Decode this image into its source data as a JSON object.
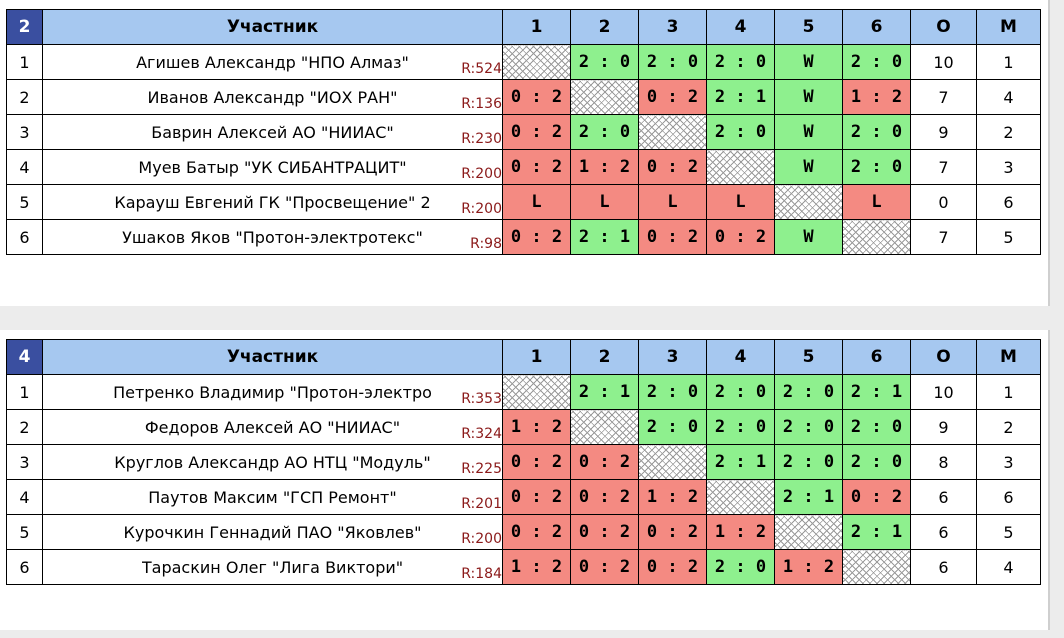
{
  "groups": [
    {
      "group_number": "2",
      "participant_header": "Участник",
      "round_headers": [
        "1",
        "2",
        "3",
        "4",
        "5",
        "6"
      ],
      "points_header": "О",
      "place_header": "М",
      "rows": [
        {
          "num": "1",
          "name": "Агишев Александр \"НПО Алмаз\"",
          "rating": "R:524",
          "cells": [
            "",
            "2 : 0",
            "2 : 0",
            "2 : 0",
            "W",
            "2 : 0"
          ],
          "points": "10",
          "place": "1"
        },
        {
          "num": "2",
          "name": "Иванов Александр \"ИОХ РАН\"",
          "rating": "R:136",
          "cells": [
            "0 : 2",
            "",
            "0 : 2",
            "2 : 1",
            "W",
            "1 : 2"
          ],
          "points": "7",
          "place": "4"
        },
        {
          "num": "3",
          "name": "Баврин Алексей АО \"НИИАС\"",
          "rating": "R:230",
          "cells": [
            "0 : 2",
            "2 : 0",
            "",
            "2 : 0",
            "W",
            "2 : 0"
          ],
          "points": "9",
          "place": "2"
        },
        {
          "num": "4",
          "name": "Муев Батыр \"УК СИБАНТРАЦИТ\"",
          "rating": "R:200",
          "cells": [
            "0 : 2",
            "1 : 2",
            "0 : 2",
            "",
            "W",
            "2 : 0"
          ],
          "points": "7",
          "place": "3"
        },
        {
          "num": "5",
          "name": "Карауш Евгений ГК \"Просвещение\" 2",
          "rating": "R:200",
          "cells": [
            "L",
            "L",
            "L",
            "L",
            "",
            "L"
          ],
          "points": "0",
          "place": "6"
        },
        {
          "num": "6",
          "name": "Ушаков Яков \"Протон-электротекс\"",
          "rating": "R:98",
          "cells": [
            "0 : 2",
            "2 : 1",
            "0 : 2",
            "0 : 2",
            "W",
            ""
          ],
          "points": "7",
          "place": "5"
        }
      ]
    },
    {
      "group_number": "4",
      "participant_header": "Участник",
      "round_headers": [
        "1",
        "2",
        "3",
        "4",
        "5",
        "6"
      ],
      "points_header": "О",
      "place_header": "М",
      "rows": [
        {
          "num": "1",
          "name": "Петренко Владимир \"Протон-электро",
          "rating": "R:353",
          "cells": [
            "",
            "2 : 1",
            "2 : 0",
            "2 : 0",
            "2 : 0",
            "2 : 1"
          ],
          "points": "10",
          "place": "1"
        },
        {
          "num": "2",
          "name": "Федоров Алексей АО \"НИИАС\"",
          "rating": "R:324",
          "cells": [
            "1 : 2",
            "",
            "2 : 0",
            "2 : 0",
            "2 : 0",
            "2 : 0"
          ],
          "points": "9",
          "place": "2"
        },
        {
          "num": "3",
          "name": "Круглов Александр АО НТЦ \"Модуль\"",
          "rating": "R:225",
          "cells": [
            "0 : 2",
            "0 : 2",
            "",
            "2 : 1",
            "2 : 0",
            "2 : 0"
          ],
          "points": "8",
          "place": "3"
        },
        {
          "num": "4",
          "name": "Паутов Максим \"ГСП Ремонт\"",
          "rating": "R:201",
          "cells": [
            "0 : 2",
            "0 : 2",
            "1 : 2",
            "",
            "2 : 1",
            "0 : 2"
          ],
          "points": "6",
          "place": "6"
        },
        {
          "num": "5",
          "name": "Курочкин Геннадий ПАО \"Яковлев\"",
          "rating": "R:200",
          "cells": [
            "0 : 2",
            "0 : 2",
            "0 : 2",
            "1 : 2",
            "",
            "2 : 1"
          ],
          "points": "6",
          "place": "5"
        },
        {
          "num": "6",
          "name": "Тараскин Олег \"Лига Виктори\"",
          "rating": "R:184",
          "cells": [
            "1 : 2",
            "0 : 2",
            "0 : 2",
            "2 : 0",
            "1 : 2",
            ""
          ],
          "points": "6",
          "place": "4"
        }
      ]
    }
  ],
  "colors": {
    "header_bg": "#a6c8f0",
    "group_badge_bg": "#3a4fa0",
    "win_bg": "#8ef08e",
    "loss_bg": "#f48a82",
    "rating_text": "#8b1a1a"
  }
}
